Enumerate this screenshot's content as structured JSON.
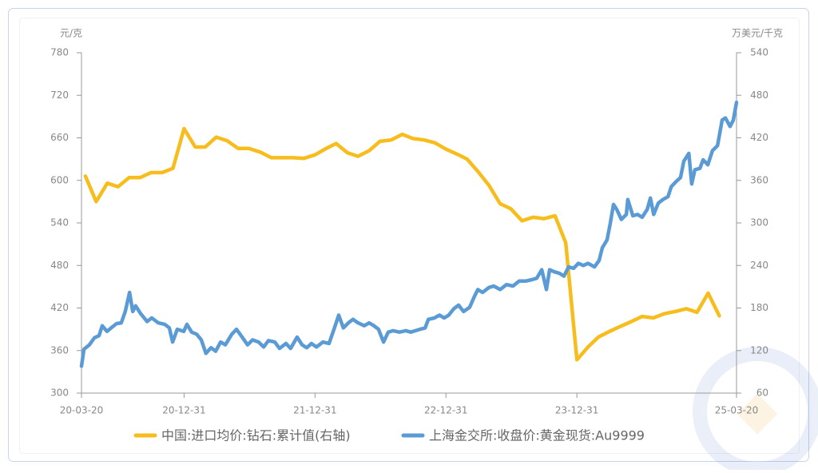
{
  "chart_data": {
    "type": "line",
    "y_label": "元/克",
    "y2_label": "万美元/千克",
    "xlim": [
      "20-03-20",
      "25-03-20"
    ],
    "xticks": [
      "20-03-20",
      "20-12-31",
      "21-12-31",
      "22-12-31",
      "23-12-31",
      "25-03-20"
    ],
    "ylim": [
      300,
      780
    ],
    "yticks": [
      300,
      360,
      420,
      480,
      540,
      600,
      660,
      720,
      780
    ],
    "y2lim": [
      60,
      540
    ],
    "y2ticks": [
      60,
      120,
      180,
      240,
      300,
      360,
      420,
      480,
      540
    ],
    "series": [
      {
        "name": "中国:进口均价:钻石:累计值(右轴)",
        "color": "#f7bd1c",
        "axis": "y2",
        "x": [
          "20-03-31",
          "20-04-30",
          "20-05-31",
          "20-06-30",
          "20-07-31",
          "20-08-31",
          "20-09-30",
          "20-10-31",
          "20-11-30",
          "20-12-31",
          "21-01-31",
          "21-02-28",
          "21-03-31",
          "21-04-30",
          "21-05-31",
          "21-06-30",
          "21-07-31",
          "21-08-31",
          "21-09-30",
          "21-10-31",
          "21-11-30",
          "21-12-31",
          "22-01-31",
          "22-02-28",
          "22-03-31",
          "22-04-30",
          "22-05-31",
          "22-06-30",
          "22-07-31",
          "22-08-31",
          "22-09-30",
          "22-10-31",
          "22-11-30",
          "22-12-31",
          "23-01-31",
          "23-02-28",
          "23-03-31",
          "23-04-30",
          "23-05-31",
          "23-06-30",
          "23-07-31",
          "23-08-31",
          "23-09-30",
          "23-10-31",
          "23-11-30",
          "23-12-31",
          "24-01-31",
          "24-02-29",
          "24-03-31",
          "24-04-30",
          "24-05-31",
          "24-06-30",
          "24-07-31",
          "24-08-31",
          "24-09-30",
          "24-10-31",
          "24-11-30",
          "24-12-31",
          "25-01-31"
        ],
        "values": [
          366,
          330,
          356,
          351,
          364,
          364,
          371,
          371,
          377,
          433,
          407,
          407,
          421,
          416,
          405,
          405,
          400,
          392,
          392,
          392,
          391,
          396,
          405,
          412,
          399,
          394,
          402,
          415,
          417,
          425,
          419,
          417,
          413,
          404,
          397,
          390,
          372,
          353,
          327,
          320,
          303,
          308,
          306,
          310,
          272,
          107,
          125,
          139,
          147,
          154,
          161,
          168,
          166,
          172,
          175,
          179,
          174,
          201,
          169
        ]
      },
      {
        "name": "上海金交所:收盘价:黄金现货:Au9999",
        "color": "#5b9bd5",
        "axis": "y",
        "x": [
          "20-03-20",
          "20-03-27",
          "20-04-11",
          "20-04-25",
          "20-05-08",
          "20-05-17",
          "20-05-30",
          "20-06-13",
          "20-06-26",
          "20-07-09",
          "20-07-20",
          "20-08-01",
          "20-08-10",
          "20-08-18",
          "20-09-01",
          "20-09-19",
          "20-10-02",
          "20-10-20",
          "20-11-07",
          "20-11-20",
          "20-11-29",
          "20-12-12",
          "20-12-30",
          "21-01-08",
          "21-01-21",
          "21-02-04",
          "21-02-17",
          "21-03-02",
          "21-03-16",
          "21-03-29",
          "21-04-12",
          "21-04-25",
          "21-05-13",
          "21-05-26",
          "21-06-08",
          "21-06-26",
          "21-07-10",
          "21-07-27",
          "21-08-10",
          "21-08-23",
          "21-09-10",
          "21-09-23",
          "21-10-11",
          "21-10-24",
          "21-11-11",
          "21-11-25",
          "21-12-08",
          "21-12-21",
          "22-01-04",
          "22-01-22",
          "22-02-08",
          "22-02-22",
          "22-03-07",
          "22-03-20",
          "22-04-03",
          "22-04-16",
          "22-04-30",
          "22-05-17",
          "22-05-31",
          "22-06-13",
          "22-06-26",
          "22-07-10",
          "22-07-23",
          "22-08-06",
          "22-08-23",
          "22-09-10",
          "22-09-24",
          "22-10-07",
          "22-10-20",
          "22-11-03",
          "22-11-12",
          "22-11-29",
          "22-12-13",
          "22-12-26",
          "23-01-08",
          "23-01-22",
          "23-02-04",
          "23-02-18",
          "23-03-07",
          "23-03-21",
          "23-03-30",
          "23-04-12",
          "23-04-30",
          "23-05-13",
          "23-05-31",
          "23-06-18",
          "23-07-06",
          "23-07-23",
          "23-08-10",
          "23-08-28",
          "23-09-10",
          "23-09-24",
          "23-10-07",
          "23-10-16",
          "23-10-29",
          "23-11-12",
          "23-11-25",
          "23-12-08",
          "23-12-22",
          "24-01-04",
          "24-01-18",
          "24-01-31",
          "24-02-18",
          "24-03-02",
          "24-03-11",
          "24-03-24",
          "24-04-02",
          "24-04-11",
          "24-04-20",
          "24-05-03",
          "24-05-17",
          "24-05-21",
          "24-06-04",
          "24-06-17",
          "24-06-30",
          "24-07-14",
          "24-07-23",
          "24-08-01",
          "24-08-14",
          "24-08-27",
          "24-09-10",
          "24-09-19",
          "24-10-02",
          "24-10-15",
          "24-10-24",
          "24-11-07",
          "24-11-15",
          "24-11-24",
          "24-12-08",
          "24-12-17",
          "24-12-30",
          "25-01-12",
          "25-01-26",
          "25-02-08",
          "25-02-17",
          "25-03-02",
          "25-03-11",
          "25-03-20"
        ],
        "values": [
          338,
          362,
          368,
          378,
          381,
          395,
          387,
          393,
          398,
          399,
          415,
          442,
          415,
          423,
          412,
          401,
          406,
          399,
          397,
          392,
          372,
          390,
          387,
          397,
          386,
          383,
          375,
          356,
          364,
          359,
          372,
          368,
          383,
          390,
          381,
          368,
          375,
          372,
          365,
          374,
          372,
          363,
          370,
          363,
          379,
          368,
          364,
          370,
          365,
          372,
          370,
          390,
          410,
          392,
          399,
          404,
          399,
          395,
          399,
          395,
          390,
          372,
          386,
          388,
          386,
          388,
          386,
          388,
          390,
          392,
          404,
          406,
          410,
          406,
          410,
          419,
          424,
          415,
          421,
          437,
          446,
          442,
          449,
          451,
          446,
          453,
          451,
          458,
          458,
          460,
          462,
          474,
          446,
          474,
          471,
          469,
          465,
          478,
          476,
          483,
          480,
          483,
          478,
          487,
          505,
          516,
          539,
          566,
          559,
          545,
          552,
          573,
          550,
          552,
          548,
          559,
          575,
          552,
          568,
          573,
          577,
          591,
          598,
          604,
          627,
          638,
          595,
          615,
          617,
          629,
          622,
          642,
          649,
          685,
          688,
          676,
          685,
          710
        ]
      }
    ]
  }
}
